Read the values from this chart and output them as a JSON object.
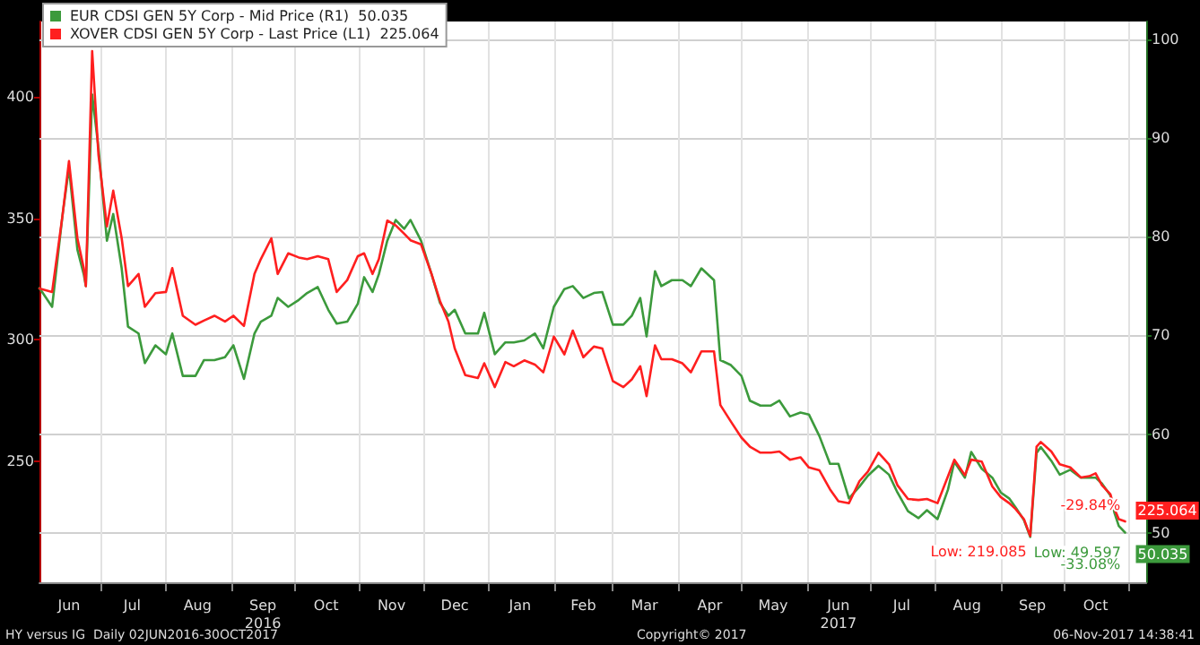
{
  "chart_data": {
    "type": "line",
    "x": [
      "2016-06-02",
      "2016-06-08",
      "2016-06-13",
      "2016-06-16",
      "2016-06-20",
      "2016-06-23",
      "2016-06-24",
      "2016-06-27",
      "2016-06-30",
      "2016-07-04",
      "2016-07-07",
      "2016-07-11",
      "2016-07-14",
      "2016-07-19",
      "2016-07-22",
      "2016-07-27",
      "2016-08-01",
      "2016-08-04",
      "2016-08-09",
      "2016-08-15",
      "2016-08-19",
      "2016-08-24",
      "2016-08-29",
      "2016-09-02",
      "2016-09-07",
      "2016-09-12",
      "2016-09-15",
      "2016-09-20",
      "2016-09-23",
      "2016-09-28",
      "2016-10-03",
      "2016-10-07",
      "2016-10-12",
      "2016-10-17",
      "2016-10-21",
      "2016-10-26",
      "2016-10-31",
      "2016-11-03",
      "2016-11-07",
      "2016-11-10",
      "2016-11-14",
      "2016-11-18",
      "2016-11-22",
      "2016-11-25",
      "2016-11-30",
      "2016-12-05",
      "2016-12-09",
      "2016-12-13",
      "2016-12-16",
      "2016-12-21",
      "2016-12-27",
      "2016-12-30",
      "2017-01-04",
      "2017-01-09",
      "2017-01-13",
      "2017-01-18",
      "2017-01-23",
      "2017-01-27",
      "2017-02-01",
      "2017-02-06",
      "2017-02-10",
      "2017-02-15",
      "2017-02-20",
      "2017-02-24",
      "2017-03-01",
      "2017-03-06",
      "2017-03-10",
      "2017-03-14",
      "2017-03-17",
      "2017-03-21",
      "2017-03-24",
      "2017-03-29",
      "2017-04-03",
      "2017-04-07",
      "2017-04-12",
      "2017-04-18",
      "2017-04-21",
      "2017-04-26",
      "2017-05-01",
      "2017-05-05",
      "2017-05-10",
      "2017-05-15",
      "2017-05-19",
      "2017-05-24",
      "2017-05-29",
      "2017-06-02",
      "2017-06-07",
      "2017-06-12",
      "2017-06-16",
      "2017-06-21",
      "2017-06-26",
      "2017-06-30",
      "2017-07-05",
      "2017-07-10",
      "2017-07-14",
      "2017-07-19",
      "2017-07-24",
      "2017-07-28",
      "2017-08-02",
      "2017-08-07",
      "2017-08-10",
      "2017-08-15",
      "2017-08-18",
      "2017-08-23",
      "2017-08-28",
      "2017-09-01",
      "2017-09-05",
      "2017-09-08",
      "2017-09-12",
      "2017-09-15",
      "2017-09-18",
      "2017-09-20",
      "2017-09-25",
      "2017-09-29",
      "2017-10-04",
      "2017-10-09",
      "2017-10-13",
      "2017-10-16",
      "2017-10-19",
      "2017-10-23",
      "2017-10-25",
      "2017-10-27",
      "2017-10-30"
    ],
    "series": [
      {
        "name": "EUR CDSI GEN 5Y Corp - Mid Price (R1)  50.035",
        "color": "#3c9a3c",
        "axis": "y2",
        "values": [
          74.8,
          72.9,
          82.3,
          87.0,
          78.7,
          76.2,
          75.0,
          94.4,
          89.0,
          79.6,
          82.3,
          76.8,
          70.9,
          70.2,
          67.2,
          69.0,
          68.1,
          70.2,
          65.9,
          65.9,
          67.5,
          67.5,
          67.8,
          69.0,
          65.6,
          70.2,
          71.4,
          72.0,
          73.8,
          72.9,
          73.6,
          74.3,
          74.9,
          72.6,
          71.2,
          71.4,
          73.2,
          75.9,
          74.4,
          76.2,
          79.6,
          81.7,
          80.8,
          81.7,
          79.6,
          76.2,
          73.3,
          72.0,
          72.6,
          70.2,
          70.2,
          72.3,
          68.1,
          69.3,
          69.3,
          69.5,
          70.2,
          68.7,
          72.9,
          74.7,
          75.0,
          73.8,
          74.3,
          74.4,
          71.1,
          71.1,
          72.0,
          73.8,
          69.9,
          76.5,
          75.0,
          75.6,
          75.6,
          75.0,
          76.8,
          75.6,
          67.5,
          67.0,
          65.9,
          63.4,
          62.9,
          62.9,
          63.4,
          61.8,
          62.2,
          62.0,
          59.8,
          57.0,
          57.0,
          53.5,
          54.7,
          55.8,
          56.8,
          55.9,
          54.1,
          52.2,
          51.5,
          52.3,
          51.4,
          54.4,
          57.2,
          55.6,
          58.2,
          56.5,
          55.6,
          54.1,
          53.5,
          52.6,
          51.3,
          49.597,
          58.1,
          58.7,
          57.3,
          55.9,
          56.4,
          55.6,
          55.6,
          55.6,
          55.0,
          53.8,
          52.0,
          50.7,
          50.035
        ],
        "value_labels": [
          null,
          null,
          null,
          null,
          null,
          null,
          null,
          null,
          null,
          null,
          null,
          null,
          null,
          null,
          null,
          null,
          null,
          null,
          null,
          null,
          null,
          null,
          null,
          null,
          null,
          null,
          null,
          null,
          null,
          null,
          null,
          null,
          null,
          null,
          null,
          null,
          null,
          null,
          null,
          null,
          null,
          null,
          null,
          null,
          null,
          null,
          null,
          null,
          null,
          null,
          null,
          null,
          null,
          null,
          null,
          null,
          null,
          null,
          null,
          null,
          null,
          null,
          null,
          null,
          null,
          null,
          null,
          null,
          null,
          null,
          null,
          null,
          null,
          null,
          null,
          null,
          null,
          null,
          null,
          null,
          null,
          null,
          null,
          null,
          null,
          null,
          null,
          null,
          null,
          null,
          null,
          null,
          null,
          null,
          null,
          null,
          null,
          null,
          null,
          null,
          null,
          null,
          null,
          null,
          null,
          null,
          null,
          null,
          null,
          "Low: 49.597",
          null,
          null,
          null,
          null,
          null,
          null,
          null,
          null,
          null,
          null,
          null,
          null,
          "50.035"
        ]
      },
      {
        "name": "XOVER CDSI GEN 5Y Corp - Last Price (L1)  225.064",
        "color": "#ff1f1f",
        "values": [
          321.0,
          319.6,
          351.5,
          373.5,
          341.7,
          329.4,
          322.0,
          418.8,
          376.0,
          346.6,
          361.3,
          341.7,
          322.0,
          327.0,
          313.5,
          319.1,
          319.6,
          329.4,
          309.8,
          306.1,
          307.8,
          309.8,
          307.4,
          309.8,
          305.6,
          327.0,
          333.1,
          341.7,
          327.0,
          335.5,
          333.8,
          333.1,
          334.3,
          333.1,
          319.6,
          324.5,
          334.3,
          335.5,
          327.0,
          333.1,
          349.0,
          347.0,
          343.6,
          340.9,
          339.2,
          327.0,
          315.9,
          307.4,
          296.3,
          285.3,
          284.1,
          290.2,
          280.4,
          290.7,
          289.0,
          291.4,
          289.7,
          286.5,
          301.2,
          293.9,
          303.7,
          292.7,
          297.1,
          296.3,
          282.9,
          280.4,
          283.6,
          289.0,
          276.7,
          297.6,
          291.9,
          291.9,
          290.2,
          286.5,
          295.1,
          295.1,
          273.0,
          266.2,
          259.6,
          255.9,
          253.4,
          253.4,
          253.9,
          250.5,
          251.5,
          247.3,
          246.1,
          238.3,
          233.4,
          232.6,
          241.7,
          245.6,
          253.4,
          248.6,
          240.0,
          234.3,
          233.9,
          234.3,
          232.6,
          243.7,
          250.5,
          244.1,
          250.5,
          249.7,
          239.5,
          235.1,
          232.6,
          230.2,
          226.0,
          219.085,
          255.9,
          257.8,
          253.9,
          248.6,
          247.3,
          243.2,
          243.7,
          244.9,
          240.0,
          236.3,
          230.2,
          226.0,
          225.064
        ],
        "value_labels": [
          null,
          null,
          null,
          null,
          null,
          null,
          null,
          null,
          null,
          null,
          null,
          null,
          null,
          null,
          null,
          null,
          null,
          null,
          null,
          null,
          null,
          null,
          null,
          null,
          null,
          null,
          null,
          null,
          null,
          null,
          null,
          null,
          null,
          null,
          null,
          null,
          null,
          null,
          null,
          null,
          null,
          null,
          null,
          null,
          null,
          null,
          null,
          null,
          null,
          null,
          null,
          null,
          null,
          null,
          null,
          null,
          null,
          null,
          null,
          null,
          null,
          null,
          null,
          null,
          null,
          null,
          null,
          null,
          null,
          null,
          null,
          null,
          null,
          null,
          null,
          null,
          null,
          null,
          null,
          null,
          null,
          null,
          null,
          null,
          null,
          null,
          null,
          null,
          null,
          null,
          null,
          null,
          null,
          null,
          null,
          null,
          null,
          null,
          null,
          null,
          null,
          null,
          null,
          null,
          null,
          null,
          null,
          null,
          null,
          "Low: 219.085",
          null,
          null,
          null,
          null,
          null,
          null,
          null,
          null,
          null,
          null,
          null,
          null,
          "225.064"
        ]
      }
    ],
    "xlim": [
      "2016-06-02",
      "2017-11-09"
    ],
    "xticks": [
      {
        "value": "2016-06-16",
        "label": "Jun"
      },
      {
        "value": "2016-07-01",
        "label": null
      },
      {
        "value": "2016-07-16",
        "label": "Jul"
      },
      {
        "value": "2016-08-01",
        "label": null
      },
      {
        "value": "2016-08-16",
        "label": "Aug"
      },
      {
        "value": "2016-09-01",
        "label": null
      },
      {
        "value": "2016-09-16",
        "label": "Sep\n2016"
      },
      {
        "value": "2016-10-01",
        "label": null
      },
      {
        "value": "2016-10-16",
        "label": "Oct"
      },
      {
        "value": "2016-11-01",
        "label": null
      },
      {
        "value": "2016-11-16",
        "label": "Nov"
      },
      {
        "value": "2016-12-01",
        "label": null
      },
      {
        "value": "2016-12-16",
        "label": "Dec"
      },
      {
        "value": "2017-01-01",
        "label": null
      },
      {
        "value": "2017-01-16",
        "label": "Jan"
      },
      {
        "value": "2017-02-01",
        "label": null
      },
      {
        "value": "2017-02-15",
        "label": "Feb"
      },
      {
        "value": "2017-03-01",
        "label": null
      },
      {
        "value": "2017-03-16",
        "label": "Mar"
      },
      {
        "value": "2017-04-01",
        "label": null
      },
      {
        "value": "2017-04-16",
        "label": "Apr"
      },
      {
        "value": "2017-05-01",
        "label": null
      },
      {
        "value": "2017-05-16",
        "label": "May"
      },
      {
        "value": "2017-06-01",
        "label": null
      },
      {
        "value": "2017-06-16",
        "label": "Jun\n2017"
      },
      {
        "value": "2017-07-01",
        "label": null
      },
      {
        "value": "2017-07-16",
        "label": "Jul"
      },
      {
        "value": "2017-08-01",
        "label": null
      },
      {
        "value": "2017-08-16",
        "label": "Aug"
      },
      {
        "value": "2017-09-01",
        "label": null
      },
      {
        "value": "2017-09-16",
        "label": "Sep"
      },
      {
        "value": "2017-10-01",
        "label": null
      },
      {
        "value": "2017-10-16",
        "label": "Oct"
      },
      {
        "value": "2017-11-01",
        "label": null
      }
    ],
    "ylim": [
      200,
      431
    ],
    "yticks": [
      250,
      300,
      350,
      400
    ],
    "y2lim": [
      45,
      101.8
    ],
    "y2ticks": [
      50,
      60,
      70,
      80,
      90,
      100
    ],
    "grid": true,
    "legend": "top left",
    "marker": "none",
    "line_style": "solid",
    "annotations": [
      {
        "text": "-29.84%",
        "x": "2017-10-30",
        "y": 225.064
      },
      {
        "text": "-33.08%",
        "x": "2017-10-30",
        "y": 220.5
      },
      "HY versus IG  Daily 02JUN2016-30OCT2017",
      "Copyright© 2017",
      "06-Nov-2017 14:38:41"
    ]
  }
}
